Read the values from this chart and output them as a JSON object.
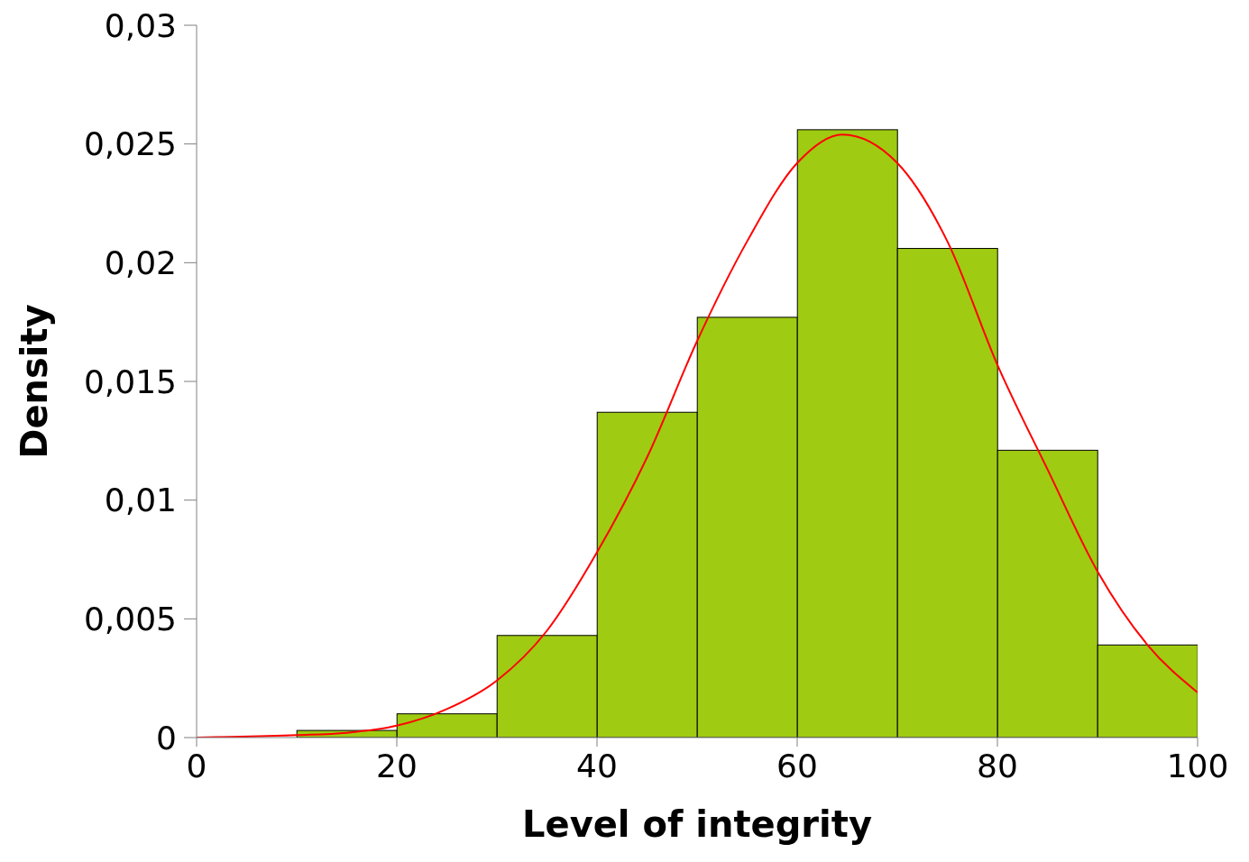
{
  "chart_data": {
    "type": "histogram",
    "xlabel": "Level of integrity",
    "ylabel": "Density",
    "series": [
      {
        "color": "#9fcb12",
        "bins": [
          10,
          20,
          30,
          40,
          50,
          60,
          70,
          80,
          90,
          100
        ],
        "values": [
          0.0003,
          0.001,
          0.0043,
          0.0137,
          0.0177,
          0.0256,
          0.0206,
          0.0121,
          0.0039
        ]
      },
      {
        "type": "line",
        "color": "#ff0000",
        "x": [
          0,
          10,
          15,
          20,
          25,
          30,
          35,
          40,
          45,
          50,
          55,
          60,
          64.5,
          70,
          75,
          80,
          85,
          90,
          95,
          100
        ],
        "values": [
          0,
          0.0001,
          0.0002,
          0.0005,
          0.0012,
          0.0024,
          0.0045,
          0.0078,
          0.0118,
          0.0167,
          0.0209,
          0.0242,
          0.0254,
          0.0242,
          0.0209,
          0.0157,
          0.0113,
          0.007,
          0.0039,
          0.0019
        ]
      }
    ],
    "xlim": [
      0,
      100
    ],
    "xticks": [
      0,
      20,
      40,
      60,
      80,
      100
    ],
    "ylim": [
      0,
      0.03
    ],
    "yticks": [
      {
        "value": 0,
        "label": "0"
      },
      {
        "value": 0.005,
        "label": "0,005"
      },
      {
        "value": 0.01,
        "label": "0,01"
      },
      {
        "value": 0.015,
        "label": "0,015"
      },
      {
        "value": 0.02,
        "label": "0,02"
      },
      {
        "value": 0.025,
        "label": "0,025"
      },
      {
        "value": 0.03,
        "label": "0,03"
      }
    ],
    "marker": "none",
    "grid": false
  }
}
